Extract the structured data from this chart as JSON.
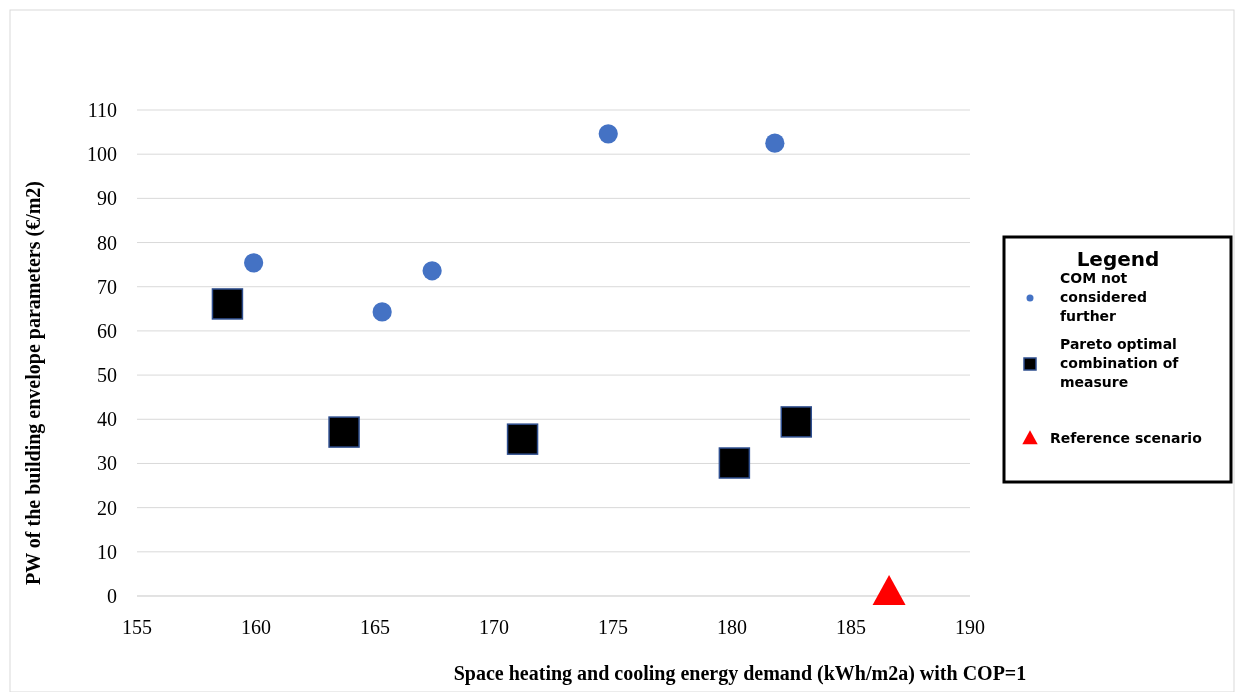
{
  "chart_data": {
    "type": "scatter",
    "xlabel": "Space heating and cooling energy demand (kWh/m2a) with COP=1",
    "ylabel": "PW of the building envelope parameters (€/m2)",
    "legend_title": "Legend",
    "legend": "right",
    "grid": "y",
    "xlim": [
      155,
      190
    ],
    "xticks": [
      155,
      160,
      165,
      170,
      175,
      180,
      185,
      190
    ],
    "ylim": [
      0,
      110
    ],
    "yticks": [
      0,
      10,
      20,
      30,
      40,
      50,
      60,
      70,
      80,
      90,
      100,
      110
    ],
    "series": [
      {
        "name": "COM not considered further",
        "color": "#4472c4",
        "marker": "circle",
        "x": [
          159.9,
          165.3,
          167.4,
          174.8,
          181.8
        ],
        "values": [
          75.4,
          64.3,
          73.6,
          104.6,
          102.5
        ]
      },
      {
        "name": "Pareto optimal combination of measure",
        "color": "#000000",
        "marker": "square",
        "x": [
          158.8,
          163.7,
          171.2,
          180.1,
          182.7
        ],
        "values": [
          66.1,
          37.1,
          35.5,
          30.1,
          39.4
        ]
      },
      {
        "name": "Reference scenario",
        "color": "#ff0000",
        "marker": "triangle",
        "x": [
          186.6
        ],
        "values": [
          1
        ]
      }
    ]
  }
}
